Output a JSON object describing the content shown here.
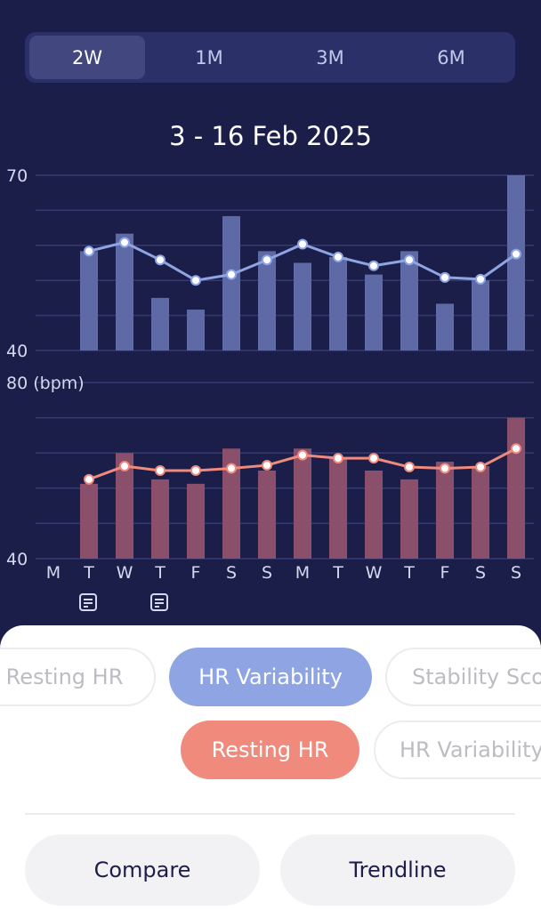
{
  "range_tabs": [
    "2W",
    "1M",
    "3M",
    "6M"
  ],
  "selected_range": "2W",
  "period_label": "3 - 16 Feb 2025",
  "colors": {
    "background": "#1c1e4a",
    "hrv_bar": "#5e6aa6",
    "hrv_line": "#8fa4e2",
    "rhr_bar": "#8a4f6a",
    "rhr_line": "#ef8a7c",
    "grid": "#363a73"
  },
  "chart_data": [
    {
      "type": "bar",
      "metric": "HR Variability",
      "categories": [
        "M",
        "T",
        "W",
        "T",
        "F",
        "S",
        "S",
        "M",
        "T",
        "W",
        "T",
        "F",
        "S",
        "S"
      ],
      "ylim": [
        40,
        70
      ],
      "ytick_labels": [
        "70",
        "40"
      ],
      "grid": true,
      "series": [
        {
          "kind": "bar",
          "values": [
            null,
            57,
            60,
            49,
            47,
            63,
            57,
            55,
            56,
            53,
            57,
            48,
            52,
            70
          ]
        },
        {
          "kind": "line",
          "values": [
            null,
            57,
            58.5,
            55.5,
            52,
            53,
            55.5,
            58.2,
            56,
            54.5,
            55.5,
            52.5,
            52.2,
            56.5
          ]
        }
      ]
    },
    {
      "type": "bar",
      "metric": "Resting HR",
      "ylabel": "(bpm)",
      "categories": [
        "M",
        "T",
        "W",
        "T",
        "F",
        "S",
        "S",
        "M",
        "T",
        "W",
        "T",
        "F",
        "S",
        "S"
      ],
      "ylim": [
        40,
        80
      ],
      "ytick_labels": [
        "80",
        "40"
      ],
      "grid": true,
      "series": [
        {
          "kind": "bar",
          "values": [
            null,
            57,
            64,
            58,
            57,
            65,
            60,
            65,
            63,
            60,
            58,
            62,
            61,
            72
          ]
        },
        {
          "kind": "line",
          "values": [
            null,
            58,
            61,
            60,
            60,
            60.5,
            61.2,
            63.5,
            62.8,
            62.8,
            60.8,
            60.5,
            60.8,
            65
          ]
        }
      ]
    }
  ],
  "note_days": [
    1,
    3
  ],
  "metric_chips_top": {
    "left_partial": "Resting HR",
    "selected": "HR Variability",
    "right_partial": "Stability Score"
  },
  "metric_chips_bottom": {
    "selected": "Resting HR",
    "right_partial": "HR Variability"
  },
  "buttons": {
    "compare": "Compare",
    "trendline": "Trendline"
  }
}
